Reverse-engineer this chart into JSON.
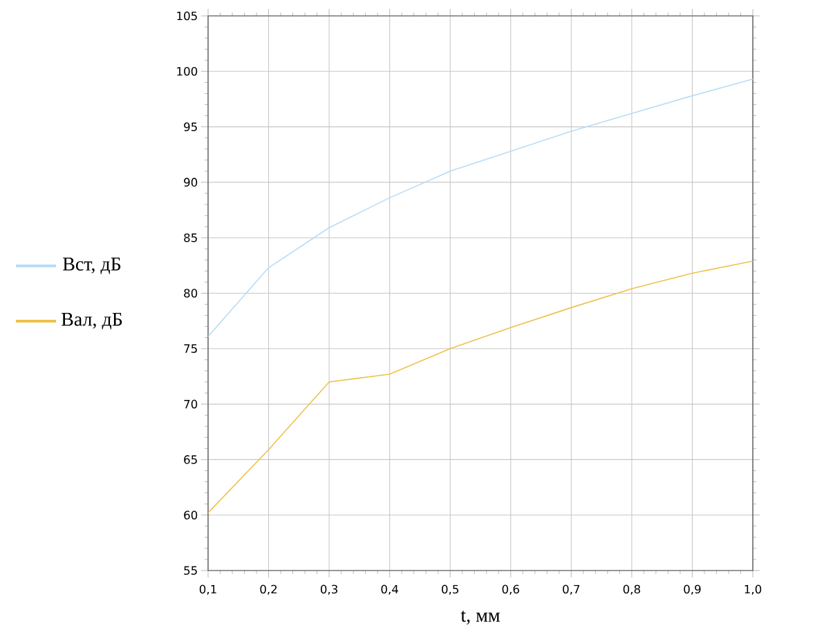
{
  "chart_data": {
    "type": "line",
    "xlabel": "t, мм",
    "x": [
      0.1,
      0.2,
      0.3,
      0.4,
      0.5,
      0.6,
      0.7,
      0.8,
      0.9,
      1.0
    ],
    "series": [
      {
        "name": "Вст, дБ",
        "color": "#b8dcf5",
        "values": [
          76.1,
          82.3,
          85.9,
          88.6,
          91.0,
          92.8,
          94.6,
          96.2,
          97.8,
          99.3
        ]
      },
      {
        "name": "Вал, дБ",
        "color": "#edc14a",
        "values": [
          60.2,
          65.9,
          72.0,
          72.7,
          75.0,
          76.9,
          78.7,
          80.4,
          81.8,
          82.9
        ]
      }
    ],
    "xlim": [
      0.1,
      1.0
    ],
    "xticks": [
      {
        "value": 0.1,
        "label": "0,1"
      },
      {
        "value": 0.2,
        "label": "0,2"
      },
      {
        "value": 0.3,
        "label": "0,3"
      },
      {
        "value": 0.4,
        "label": "0,4"
      },
      {
        "value": 0.5,
        "label": "0,5"
      },
      {
        "value": 0.6,
        "label": "0,6"
      },
      {
        "value": 0.7,
        "label": "0,7"
      },
      {
        "value": 0.8,
        "label": "0,8"
      },
      {
        "value": 0.9,
        "label": "0,9"
      },
      {
        "value": 1.0,
        "label": "1,0"
      }
    ],
    "ylim": [
      55,
      105
    ],
    "yticks": [
      55,
      60,
      65,
      70,
      75,
      80,
      85,
      90,
      95,
      100,
      105
    ],
    "grid": true,
    "legend": "left",
    "marker": "none",
    "line_style": "solid"
  }
}
